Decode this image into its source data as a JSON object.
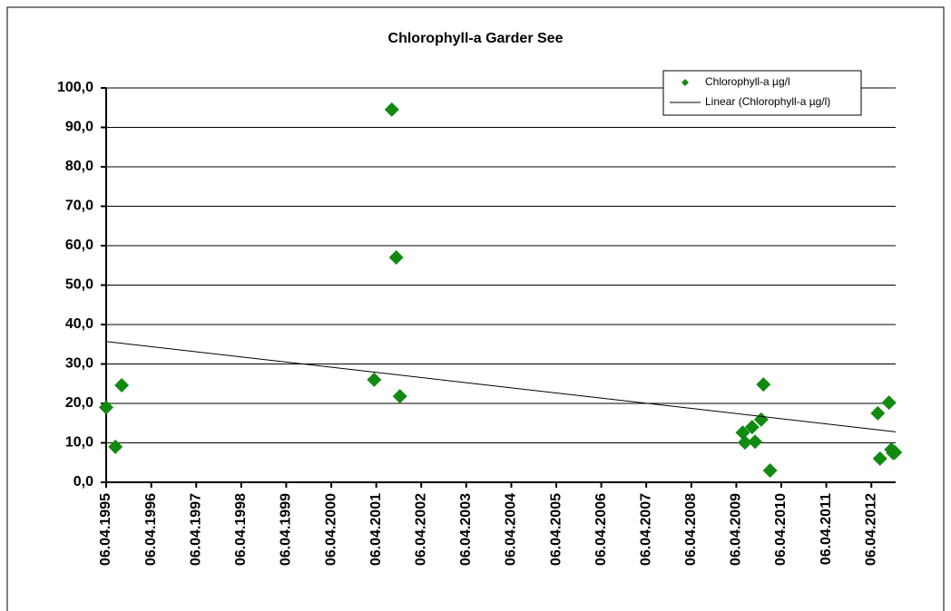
{
  "chart_data": {
    "type": "scatter",
    "title": "Chlorophyll-a  Garder See",
    "series": [
      {
        "name": "Chlorophyll-a µg/l",
        "color": "#128a12",
        "x": [
          "1995-04-06",
          "1995-06-20",
          "1995-08-10",
          "2001-03-20",
          "2001-08-10",
          "2001-09-15",
          "2001-10-15",
          "2009-05-28",
          "2009-06-15",
          "2009-08-12",
          "2009-09-05",
          "2009-10-25",
          "2009-11-12",
          "2010-01-05",
          "2012-05-28",
          "2012-06-15",
          "2012-08-27",
          "2012-09-15",
          "2012-09-30",
          "2012-10-15"
        ],
        "values": [
          19.0,
          9.0,
          24.6,
          26.0,
          94.5,
          57.0,
          21.8,
          12.6,
          10.1,
          14.0,
          10.3,
          15.9,
          24.8,
          3.0,
          17.5,
          6.0,
          20.2,
          8.3,
          7.4,
          7.6
        ]
      }
    ],
    "trendline": {
      "name": "Linear (Chlorophyll-a µg/l)",
      "color": "#000000",
      "x": [
        "1995-04-06",
        "2012-10-20"
      ],
      "values": [
        35.7,
        12.8
      ]
    },
    "xlim": [
      "1995-04-06",
      "2012-10-20"
    ],
    "xticks": [
      {
        "value": "1995-04-06",
        "label": "06.04.1995"
      },
      {
        "value": "1996-04-06",
        "label": "06.04.1996"
      },
      {
        "value": "1997-04-06",
        "label": "06.04.1997"
      },
      {
        "value": "1998-04-06",
        "label": "06.04.1998"
      },
      {
        "value": "1999-04-06",
        "label": "06.04.1999"
      },
      {
        "value": "2000-04-06",
        "label": "06.04.2000"
      },
      {
        "value": "2001-04-06",
        "label": "06.04.2001"
      },
      {
        "value": "2002-04-06",
        "label": "06.04.2002"
      },
      {
        "value": "2003-04-06",
        "label": "06.04.2003"
      },
      {
        "value": "2004-04-06",
        "label": "06.04.2004"
      },
      {
        "value": "2005-04-06",
        "label": "06.04.2005"
      },
      {
        "value": "2006-04-06",
        "label": "06.04.2006"
      },
      {
        "value": "2007-04-06",
        "label": "06.04.2007"
      },
      {
        "value": "2008-04-06",
        "label": "06.04.2008"
      },
      {
        "value": "2009-04-06",
        "label": "06.04.2009"
      },
      {
        "value": "2010-04-06",
        "label": "06.04.2010"
      },
      {
        "value": "2011-04-06",
        "label": "06.04.2011"
      },
      {
        "value": "2012-04-06",
        "label": "06.04.2012"
      }
    ],
    "ylim": [
      0,
      100
    ],
    "yticks": [
      {
        "value": 0,
        "label": "0,0"
      },
      {
        "value": 10,
        "label": "10,0"
      },
      {
        "value": 20,
        "label": "20,0"
      },
      {
        "value": 30,
        "label": "30,0"
      },
      {
        "value": 40,
        "label": "40,0"
      },
      {
        "value": 50,
        "label": "50,0"
      },
      {
        "value": 60,
        "label": "60,0"
      },
      {
        "value": 70,
        "label": "70,0"
      },
      {
        "value": 80,
        "label": "80,0"
      },
      {
        "value": 90,
        "label": "90,0"
      },
      {
        "value": 100,
        "label": "100,0"
      }
    ],
    "grid": true,
    "legend": "top-right"
  }
}
